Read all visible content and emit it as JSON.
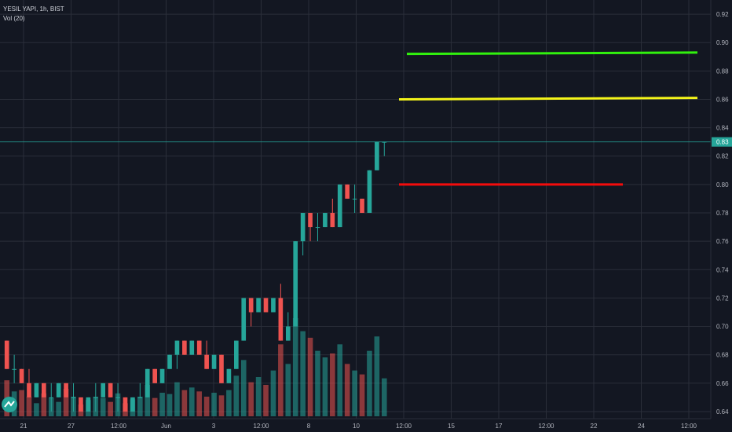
{
  "legend": {
    "title": "YESIL YAPI, 1h, BIST",
    "indicator": "Vol (20)"
  },
  "colors": {
    "background": "#131722",
    "grid": "#2a2e39",
    "up": "#26a69a",
    "down": "#ef5350",
    "text": "#b2b5be",
    "line_green": "#31f10e",
    "line_yellow": "#f5f51a",
    "line_red": "#f40c0c",
    "price_line": "#26a69a"
  },
  "chart_data": {
    "type": "candlestick",
    "ylim": [
      0.635,
      0.93
    ],
    "y_ticks": [
      "0.92",
      "0.90",
      "0.88",
      "0.86",
      "0.84",
      "0.82",
      "0.80",
      "0.78",
      "0.76",
      "0.74",
      "0.72",
      "0.70",
      "0.68",
      "0.66",
      "0.64"
    ],
    "x_ticks": [
      "21",
      "27",
      "12:00",
      "Jun",
      "3",
      "12:00",
      "8",
      "10",
      "12:00",
      "15",
      "17",
      "12:00",
      "22",
      "24",
      "12:00"
    ],
    "current_price": {
      "label": "0.83",
      "value": 0.83
    },
    "candles": [
      {
        "o": 0.69,
        "h": 0.69,
        "l": 0.67,
        "c": 0.67
      },
      {
        "o": 0.67,
        "h": 0.68,
        "l": 0.66,
        "c": 0.67
      },
      {
        "o": 0.67,
        "h": 0.67,
        "l": 0.66,
        "c": 0.66
      },
      {
        "o": 0.66,
        "h": 0.67,
        "l": 0.65,
        "c": 0.65
      },
      {
        "o": 0.65,
        "h": 0.66,
        "l": 0.65,
        "c": 0.66
      },
      {
        "o": 0.66,
        "h": 0.66,
        "l": 0.65,
        "c": 0.65
      },
      {
        "o": 0.65,
        "h": 0.66,
        "l": 0.64,
        "c": 0.65
      },
      {
        "o": 0.65,
        "h": 0.66,
        "l": 0.65,
        "c": 0.66
      },
      {
        "o": 0.66,
        "h": 0.66,
        "l": 0.65,
        "c": 0.65
      },
      {
        "o": 0.65,
        "h": 0.66,
        "l": 0.64,
        "c": 0.65
      },
      {
        "o": 0.65,
        "h": 0.65,
        "l": 0.64,
        "c": 0.64
      },
      {
        "o": 0.64,
        "h": 0.65,
        "l": 0.64,
        "c": 0.65
      },
      {
        "o": 0.65,
        "h": 0.66,
        "l": 0.64,
        "c": 0.65
      },
      {
        "o": 0.65,
        "h": 0.66,
        "l": 0.65,
        "c": 0.66
      },
      {
        "o": 0.66,
        "h": 0.66,
        "l": 0.65,
        "c": 0.65
      },
      {
        "o": 0.65,
        "h": 0.66,
        "l": 0.64,
        "c": 0.65
      },
      {
        "o": 0.65,
        "h": 0.65,
        "l": 0.64,
        "c": 0.64
      },
      {
        "o": 0.64,
        "h": 0.65,
        "l": 0.64,
        "c": 0.65
      },
      {
        "o": 0.65,
        "h": 0.66,
        "l": 0.65,
        "c": 0.65
      },
      {
        "o": 0.65,
        "h": 0.67,
        "l": 0.65,
        "c": 0.67
      },
      {
        "o": 0.67,
        "h": 0.67,
        "l": 0.66,
        "c": 0.66
      },
      {
        "o": 0.66,
        "h": 0.67,
        "l": 0.66,
        "c": 0.67
      },
      {
        "o": 0.67,
        "h": 0.68,
        "l": 0.67,
        "c": 0.68
      },
      {
        "o": 0.68,
        "h": 0.69,
        "l": 0.67,
        "c": 0.69
      },
      {
        "o": 0.69,
        "h": 0.69,
        "l": 0.68,
        "c": 0.68
      },
      {
        "o": 0.68,
        "h": 0.69,
        "l": 0.68,
        "c": 0.69
      },
      {
        "o": 0.69,
        "h": 0.69,
        "l": 0.68,
        "c": 0.68
      },
      {
        "o": 0.68,
        "h": 0.69,
        "l": 0.67,
        "c": 0.67
      },
      {
        "o": 0.67,
        "h": 0.68,
        "l": 0.67,
        "c": 0.68
      },
      {
        "o": 0.68,
        "h": 0.68,
        "l": 0.66,
        "c": 0.66
      },
      {
        "o": 0.66,
        "h": 0.67,
        "l": 0.66,
        "c": 0.67
      },
      {
        "o": 0.67,
        "h": 0.69,
        "l": 0.67,
        "c": 0.69
      },
      {
        "o": 0.69,
        "h": 0.72,
        "l": 0.69,
        "c": 0.72
      },
      {
        "o": 0.72,
        "h": 0.72,
        "l": 0.7,
        "c": 0.71
      },
      {
        "o": 0.71,
        "h": 0.72,
        "l": 0.71,
        "c": 0.72
      },
      {
        "o": 0.72,
        "h": 0.72,
        "l": 0.71,
        "c": 0.71
      },
      {
        "o": 0.71,
        "h": 0.72,
        "l": 0.71,
        "c": 0.72
      },
      {
        "o": 0.72,
        "h": 0.73,
        "l": 0.69,
        "c": 0.69
      },
      {
        "o": 0.69,
        "h": 0.71,
        "l": 0.69,
        "c": 0.7
      },
      {
        "o": 0.7,
        "h": 0.76,
        "l": 0.7,
        "c": 0.76
      },
      {
        "o": 0.76,
        "h": 0.78,
        "l": 0.75,
        "c": 0.78
      },
      {
        "o": 0.78,
        "h": 0.78,
        "l": 0.76,
        "c": 0.77
      },
      {
        "o": 0.77,
        "h": 0.78,
        "l": 0.76,
        "c": 0.77
      },
      {
        "o": 0.77,
        "h": 0.78,
        "l": 0.77,
        "c": 0.78
      },
      {
        "o": 0.78,
        "h": 0.79,
        "l": 0.77,
        "c": 0.77
      },
      {
        "o": 0.77,
        "h": 0.8,
        "l": 0.77,
        "c": 0.8
      },
      {
        "o": 0.8,
        "h": 0.8,
        "l": 0.79,
        "c": 0.79
      },
      {
        "o": 0.79,
        "h": 0.8,
        "l": 0.78,
        "c": 0.79
      },
      {
        "o": 0.79,
        "h": 0.79,
        "l": 0.78,
        "c": 0.78
      },
      {
        "o": 0.78,
        "h": 0.81,
        "l": 0.78,
        "c": 0.81
      },
      {
        "o": 0.81,
        "h": 0.83,
        "l": 0.81,
        "c": 0.83
      },
      {
        "o": 0.83,
        "h": 0.83,
        "l": 0.82,
        "c": 0.83
      }
    ],
    "volume": [
      55,
      38,
      40,
      30,
      20,
      35,
      28,
      22,
      42,
      30,
      18,
      25,
      30,
      28,
      22,
      35,
      20,
      26,
      30,
      48,
      28,
      36,
      34,
      52,
      40,
      44,
      38,
      30,
      36,
      32,
      40,
      62,
      86,
      52,
      60,
      48,
      70,
      110,
      80,
      150,
      130,
      120,
      100,
      90,
      96,
      110,
      80,
      70,
      64,
      100,
      122,
      58
    ],
    "series": [
      {
        "color": "green",
        "start_price": 0.892,
        "end_price": 0.893
      },
      {
        "color": "yellow",
        "start_price": 0.86,
        "end_price": 0.861
      },
      {
        "color": "red",
        "start_price": 0.8,
        "end_price": 0.8
      }
    ]
  }
}
